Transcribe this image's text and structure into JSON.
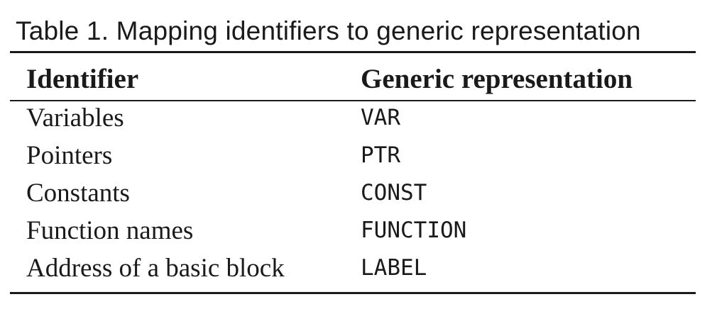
{
  "caption": "Table 1.  Mapping identifiers to generic representation",
  "table": {
    "headers": [
      "Identifier",
      "Generic representation"
    ],
    "rows": [
      [
        "Variables",
        "VAR"
      ],
      [
        "Pointers",
        "PTR"
      ],
      [
        "Constants",
        "CONST"
      ],
      [
        "Function names",
        "FUNCTION"
      ],
      [
        "Address of a basic block",
        "LABEL"
      ]
    ]
  }
}
